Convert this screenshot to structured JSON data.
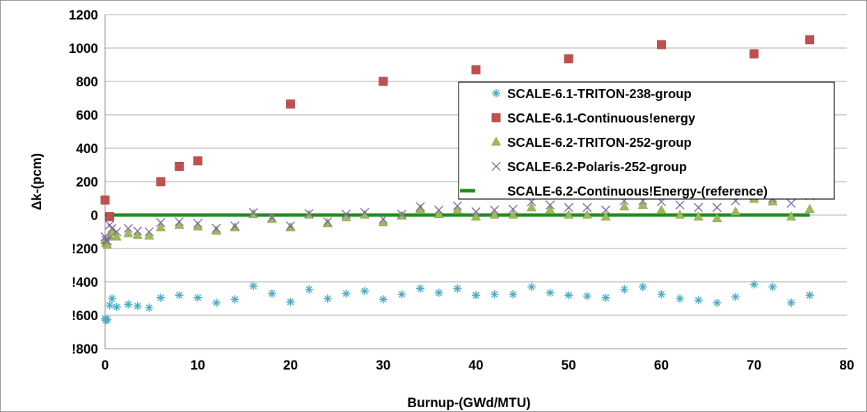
{
  "chart_data": {
    "type": "scatter",
    "xlabel": "Burnup-(GWd/MTU)",
    "ylabel": "Δk-(pcm)",
    "xlim": [
      0,
      80
    ],
    "ylim": [
      -800,
      1200
    ],
    "x_ticks": [
      0,
      10,
      20,
      30,
      40,
      50,
      60,
      70,
      80
    ],
    "y_ticks": [
      -800,
      -600,
      -400,
      -200,
      0,
      200,
      400,
      600,
      800,
      1000,
      1200
    ],
    "x_tick_labels": [
      "0",
      "10",
      "20",
      "30",
      "40",
      "50",
      "60",
      "70",
      "80"
    ],
    "y_tick_labels": [
      "!800",
      "!600",
      "!400",
      "!200",
      "0",
      "200",
      "400",
      "600",
      "800",
      "1000",
      "1200"
    ],
    "grid": {
      "horizontal": true,
      "vertical": false
    },
    "legend_position": "right",
    "series": [
      {
        "name": "SCALE-6.1-TRITON-238-group",
        "marker": "asterisk",
        "color": "#4bacc6",
        "x": [
          0,
          0.1,
          0.25,
          0.5,
          0.75,
          1.25,
          2.5,
          3.5,
          4.75,
          6,
          8,
          10,
          12,
          14,
          16,
          18,
          20,
          22,
          24,
          26,
          28,
          30,
          32,
          34,
          36,
          38,
          40,
          42,
          44,
          46,
          48,
          50,
          52,
          54,
          56,
          58,
          60,
          62,
          64,
          66,
          68,
          70,
          72,
          74,
          76
        ],
        "y": [
          -620,
          -630,
          -625,
          -540,
          -500,
          -550,
          -535,
          -545,
          -555,
          -495,
          -480,
          -495,
          -525,
          -505,
          -425,
          -470,
          -520,
          -445,
          -500,
          -470,
          -455,
          -505,
          -475,
          -440,
          -465,
          -440,
          -480,
          -475,
          -475,
          -430,
          -465,
          -480,
          -485,
          -495,
          -445,
          -430,
          -475,
          -500,
          -510,
          -525,
          -490,
          -415,
          -430,
          -525,
          -480
        ]
      },
      {
        "name": "SCALE-6.1-Continuous!energy",
        "marker": "square",
        "color": "#c0504d",
        "x": [
          0,
          0.5,
          6,
          8,
          10,
          20,
          30,
          40,
          50,
          60,
          70,
          76
        ],
        "y": [
          90,
          -10,
          200,
          290,
          325,
          665,
          800,
          870,
          935,
          1020,
          965,
          1050
        ]
      },
      {
        "name": "SCALE-6.2-TRITON-252-group",
        "marker": "triangle",
        "color": "#9bbb59",
        "x": [
          0,
          0.1,
          0.25,
          0.5,
          0.75,
          1.25,
          2.5,
          3.5,
          4.75,
          6,
          8,
          10,
          12,
          14,
          16,
          18,
          20,
          22,
          24,
          26,
          28,
          30,
          32,
          34,
          36,
          38,
          40,
          42,
          44,
          46,
          48,
          50,
          52,
          54,
          56,
          58,
          60,
          62,
          64,
          66,
          68,
          70,
          72,
          74,
          76
        ],
        "y": [
          -150,
          -170,
          -180,
          -130,
          -100,
          -130,
          -110,
          -120,
          -125,
          -75,
          -60,
          -70,
          -95,
          -75,
          5,
          -25,
          -75,
          0,
          -50,
          -15,
          0,
          -45,
          -5,
          35,
          5,
          30,
          -10,
          0,
          0,
          45,
          30,
          0,
          0,
          -10,
          50,
          60,
          30,
          0,
          -10,
          -20,
          20,
          95,
          80,
          -10,
          35
        ]
      },
      {
        "name": "SCALE-6.2-Polaris-252-group",
        "marker": "x",
        "color": "#8064a2",
        "x": [
          0,
          0.1,
          0.25,
          0.5,
          0.75,
          1.25,
          2.5,
          3.5,
          4.75,
          6,
          8,
          10,
          12,
          14,
          16,
          18,
          20,
          22,
          24,
          26,
          28,
          30,
          32,
          34,
          36,
          38,
          40,
          42,
          44,
          46,
          48,
          50,
          52,
          54,
          56,
          58,
          60,
          62,
          64,
          66,
          68,
          70,
          72,
          74,
          76
        ],
        "y": [
          -130,
          -150,
          -155,
          -60,
          -80,
          -100,
          -80,
          -95,
          -100,
          -45,
          -40,
          -50,
          -80,
          -65,
          15,
          -15,
          -65,
          10,
          -40,
          5,
          15,
          -25,
          5,
          50,
          30,
          55,
          20,
          30,
          35,
          80,
          60,
          45,
          45,
          30,
          85,
          85,
          80,
          60,
          45,
          45,
          85,
          115,
          100,
          70,
          115
        ]
      },
      {
        "name": "SCALE-6.2-Continuous!Energy-(reference)",
        "marker": "line",
        "color": "#1e8a1e",
        "x": [
          0,
          76
        ],
        "y": [
          0,
          0
        ]
      }
    ]
  }
}
